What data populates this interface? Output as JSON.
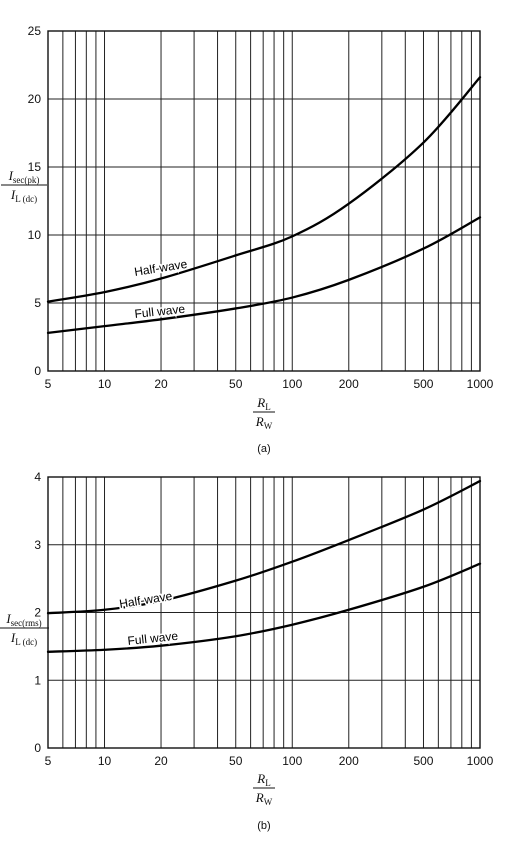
{
  "chart_data": [
    {
      "type": "line",
      "x_scale": "log",
      "xlim": [
        5,
        1000
      ],
      "ylim": [
        0,
        25
      ],
      "x_ticks": [
        5,
        10,
        20,
        50,
        100,
        200,
        500,
        1000
      ],
      "x_tick_labels": [
        "5",
        "10",
        "20",
        "50",
        "100",
        "200",
        "500",
        "1000"
      ],
      "y_ticks": [
        0,
        5,
        10,
        15,
        20,
        25
      ],
      "y_tick_labels": [
        "0",
        "5",
        "10",
        "15",
        "20",
        "25"
      ],
      "grid": true,
      "ylabel": {
        "num_main": "I",
        "num_sub": "sec(pk)",
        "den_main": "I",
        "den_sub": "L (dc)"
      },
      "xlabel": {
        "num_main": "R",
        "num_sub": "L",
        "den_main": "R",
        "den_sub": "W"
      },
      "caption": "(a)",
      "series": [
        {
          "name": "Half-wave",
          "x": [
            5,
            10,
            20,
            50,
            100,
            200,
            500,
            1000
          ],
          "y": [
            5.1,
            5.8,
            6.8,
            8.5,
            9.9,
            12.3,
            16.8,
            21.6
          ]
        },
        {
          "name": "Full wave",
          "x": [
            5,
            10,
            20,
            50,
            100,
            200,
            500,
            1000
          ],
          "y": [
            2.8,
            3.3,
            3.8,
            4.6,
            5.4,
            6.7,
            9.0,
            11.3
          ]
        }
      ]
    },
    {
      "type": "line",
      "x_scale": "log",
      "xlim": [
        5,
        1000
      ],
      "ylim": [
        0,
        4
      ],
      "x_ticks": [
        5,
        10,
        20,
        50,
        100,
        200,
        500,
        1000
      ],
      "x_tick_labels": [
        "5",
        "10",
        "20",
        "50",
        "100",
        "200",
        "500",
        "1000"
      ],
      "y_ticks": [
        0,
        1,
        2,
        3,
        4
      ],
      "y_tick_labels": [
        "0",
        "1",
        "2",
        "3",
        "4"
      ],
      "grid": true,
      "ylabel": {
        "num_main": "I",
        "num_sub": "sec(rms)",
        "den_main": "I",
        "den_sub": "L (dc)"
      },
      "xlabel": {
        "num_main": "R",
        "num_sub": "L",
        "den_main": "R",
        "den_sub": "W"
      },
      "caption": "(b)",
      "series": [
        {
          "name": "Half-wave",
          "x": [
            5,
            10,
            20,
            50,
            100,
            200,
            500,
            1000
          ],
          "y": [
            1.99,
            2.04,
            2.17,
            2.47,
            2.75,
            3.07,
            3.52,
            3.94
          ]
        },
        {
          "name": "Full wave",
          "x": [
            5,
            10,
            20,
            50,
            100,
            200,
            500,
            1000
          ],
          "y": [
            1.42,
            1.45,
            1.51,
            1.65,
            1.82,
            2.04,
            2.38,
            2.72
          ]
        }
      ]
    }
  ]
}
